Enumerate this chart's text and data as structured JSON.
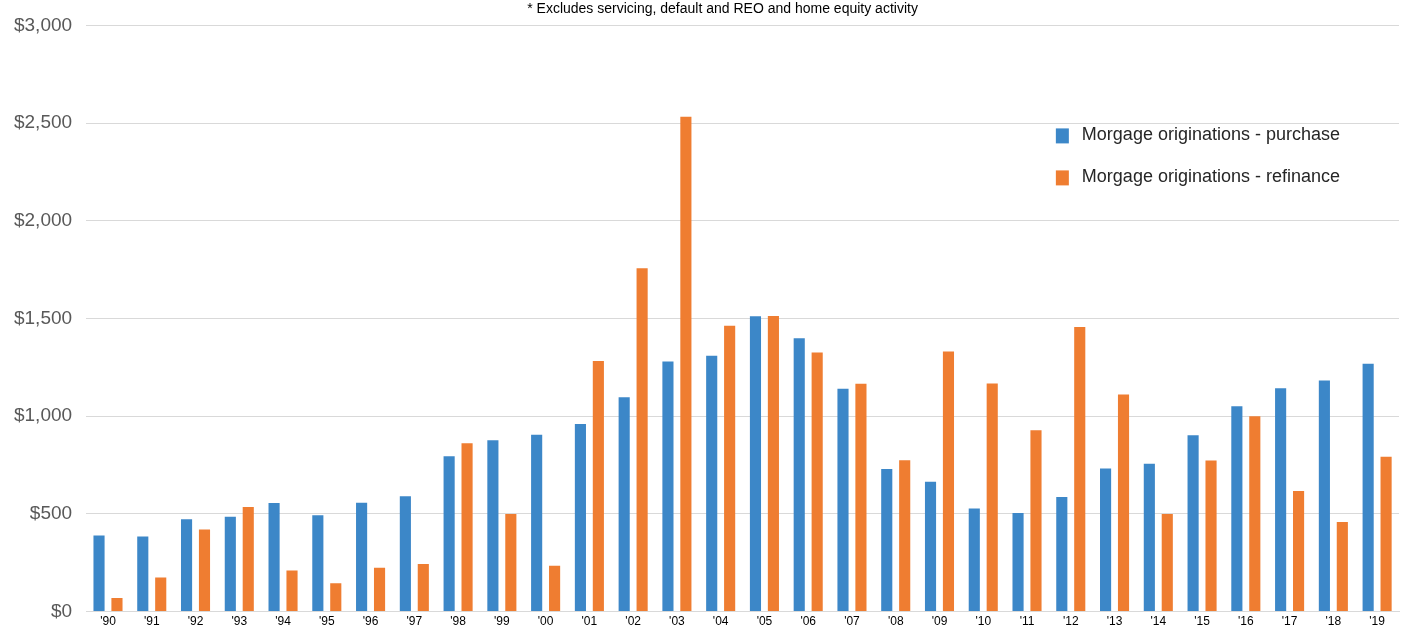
{
  "chart_data": {
    "type": "bar",
    "annotations": [
      "* Excludes servicing, default and REO and home equity activity"
    ],
    "categories": [
      "'90",
      "'91",
      "'92",
      "'93",
      "'94",
      "'95",
      "'96",
      "'97",
      "'98",
      "'99",
      "'00",
      "'01",
      "'02",
      "'03",
      "'04",
      "'05",
      "'06",
      "'07",
      "'08",
      "'09",
      "'10",
      "'11",
      "'12",
      "'13",
      "'14",
      "'15",
      "'16",
      "'17",
      "'18",
      "'19"
    ],
    "series": [
      {
        "name": "Morgage originations - purchase",
        "color": "#3c87c8",
        "values": [
          389,
          384,
          472,
          486,
          556,
          493,
          557,
          590,
          795,
          877,
          905,
          960,
          1097,
          1280,
          1309,
          1512,
          1399,
          1140,
          730,
          664,
          528,
          505,
          587,
          732,
          757,
          903,
          1051,
          1143,
          1183,
          1268
        ]
      },
      {
        "name": "Morgage originations - refinance",
        "color": "#ef7d31",
        "values": [
          70,
          175,
          420,
          535,
          210,
          145,
          225,
          243,
          862,
          500,
          235,
          1283,
          1757,
          2532,
          1463,
          1513,
          1326,
          1166,
          775,
          1331,
          1167,
          928,
          1456,
          1111,
          500,
          773,
          1000,
          617,
          458,
          793
        ]
      }
    ],
    "ylim": [
      0,
      3000
    ],
    "yticks": [
      {
        "value": 0,
        "label": "$0"
      },
      {
        "value": 500,
        "label": "$500"
      },
      {
        "value": 1000,
        "label": "$1,000"
      },
      {
        "value": 1500,
        "label": "$1,500"
      },
      {
        "value": 2000,
        "label": "$2,000"
      },
      {
        "value": 2500,
        "label": "$2,500"
      },
      {
        "value": 3000,
        "label": "$3,000"
      }
    ],
    "grid": "y",
    "legend": "top right"
  }
}
